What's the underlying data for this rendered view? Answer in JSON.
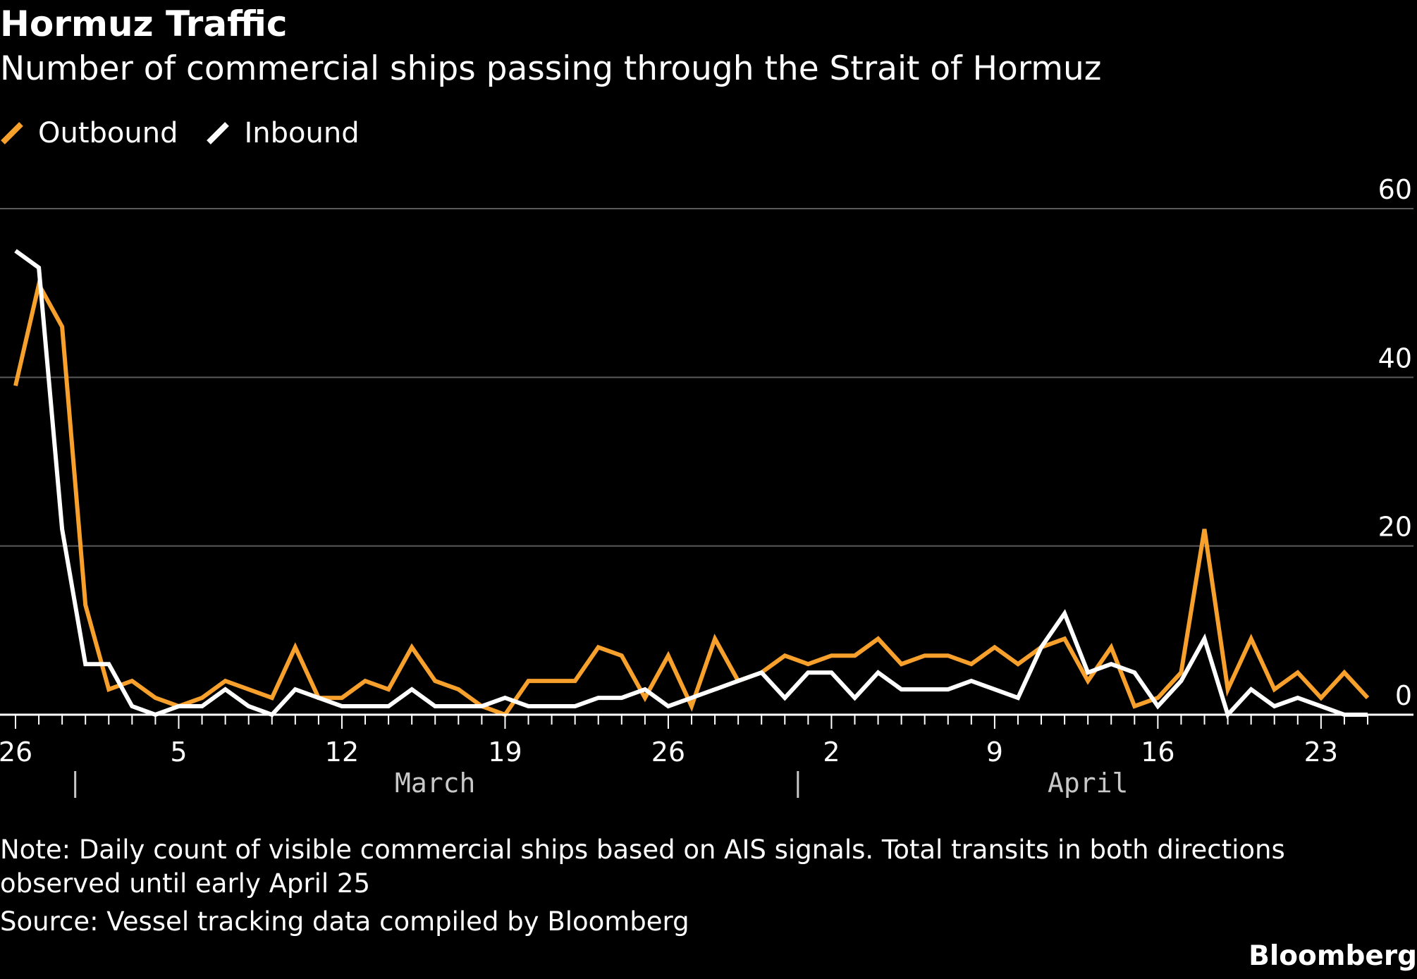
{
  "chart_data": {
    "type": "line",
    "title": "Hormuz Traffic",
    "subtitle": "Number of commercial ships passing through the Strait of Hormuz",
    "x": [
      "2026-02-26",
      "2026-02-27",
      "2026-02-28",
      "2026-03-01",
      "2026-03-02",
      "2026-03-03",
      "2026-03-04",
      "2026-03-05",
      "2026-03-06",
      "2026-03-07",
      "2026-03-08",
      "2026-03-09",
      "2026-03-10",
      "2026-03-11",
      "2026-03-12",
      "2026-03-13",
      "2026-03-14",
      "2026-03-15",
      "2026-03-16",
      "2026-03-17",
      "2026-03-18",
      "2026-03-19",
      "2026-03-20",
      "2026-03-21",
      "2026-03-22",
      "2026-03-23",
      "2026-03-24",
      "2026-03-25",
      "2026-03-26",
      "2026-03-27",
      "2026-03-28",
      "2026-03-29",
      "2026-03-30",
      "2026-03-31",
      "2026-04-01",
      "2026-04-02",
      "2026-04-03",
      "2026-04-04",
      "2026-04-05",
      "2026-04-06",
      "2026-04-07",
      "2026-04-08",
      "2026-04-09",
      "2026-04-10",
      "2026-04-11",
      "2026-04-12",
      "2026-04-13",
      "2026-04-14",
      "2026-04-15",
      "2026-04-16",
      "2026-04-17",
      "2026-04-18",
      "2026-04-19",
      "2026-04-20",
      "2026-04-21",
      "2026-04-22",
      "2026-04-23",
      "2026-04-24",
      "2026-04-25"
    ],
    "series": [
      {
        "name": "Outbound",
        "color": "#f7a02c",
        "values": [
          39,
          51,
          46,
          13,
          3,
          4,
          2,
          1,
          2,
          4,
          3,
          2,
          8,
          2,
          2,
          4,
          3,
          8,
          4,
          3,
          1,
          0,
          4,
          4,
          4,
          8,
          7,
          2,
          7,
          1,
          9,
          4,
          5,
          7,
          6,
          7,
          7,
          9,
          6,
          7,
          7,
          6,
          8,
          6,
          8,
          9,
          4,
          8,
          1,
          2,
          5,
          22,
          3,
          9,
          3,
          5,
          2,
          5,
          2
        ]
      },
      {
        "name": "Inbound",
        "color": "#ffffff",
        "values": [
          55,
          53,
          22,
          6,
          6,
          1,
          0,
          1,
          1,
          3,
          1,
          0,
          3,
          2,
          1,
          1,
          1,
          3,
          1,
          1,
          1,
          2,
          1,
          1,
          1,
          2,
          2,
          3,
          1,
          2,
          3,
          4,
          5,
          2,
          5,
          5,
          2,
          5,
          3,
          3,
          3,
          4,
          3,
          2,
          8,
          12,
          5,
          6,
          5,
          1,
          4,
          9,
          0,
          3,
          1,
          2,
          1,
          0,
          0
        ]
      }
    ],
    "ylim": [
      0,
      60
    ],
    "yticks": [
      "0",
      "20",
      "40",
      "60"
    ],
    "xtick_labels": [
      {
        "date": "2026-02-26",
        "label": "26"
      },
      {
        "date": "2026-03-05",
        "label": "5"
      },
      {
        "date": "2026-03-12",
        "label": "12"
      },
      {
        "date": "2026-03-19",
        "label": "19"
      },
      {
        "date": "2026-03-26",
        "label": "26"
      },
      {
        "date": "2026-04-02",
        "label": "2"
      },
      {
        "date": "2026-04-09",
        "label": "9"
      },
      {
        "date": "2026-04-16",
        "label": "16"
      },
      {
        "date": "2026-04-23",
        "label": "23"
      }
    ],
    "months": [
      {
        "label": "March",
        "start": "2026-03-01",
        "end": "2026-03-31"
      },
      {
        "label": "April",
        "start": "2026-04-01",
        "end": "2026-04-25"
      }
    ],
    "grid": true,
    "legend_position": "top-left"
  },
  "legend": [
    {
      "label": "Outbound",
      "color": "#f7a02c"
    },
    {
      "label": "Inbound",
      "color": "#ffffff"
    }
  ],
  "note": "Note: Daily count of visible commercial ships based on AIS signals. Total transits in both directions observed until early April 25",
  "source": "Source: Vessel tracking data compiled by Bloomberg",
  "brand": "Bloomberg"
}
